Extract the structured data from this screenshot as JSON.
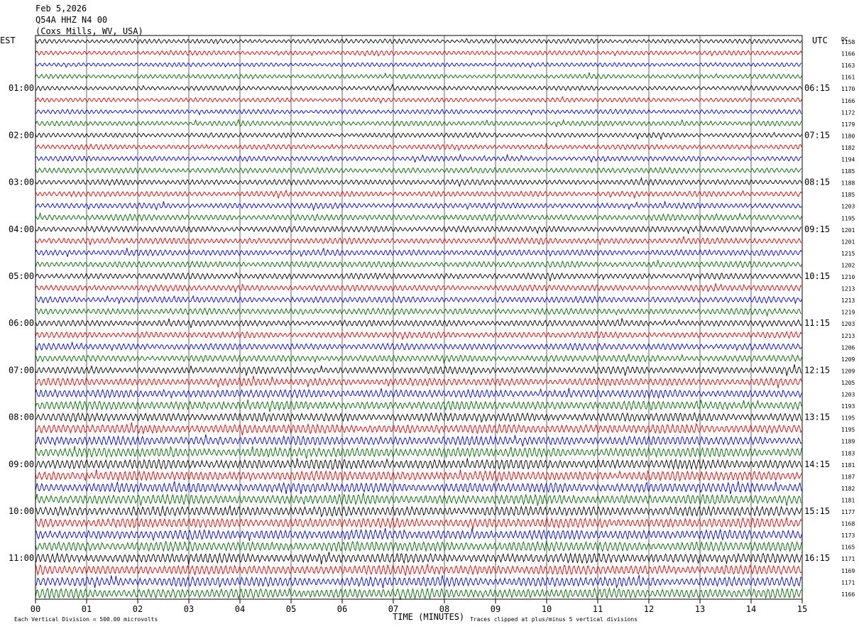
{
  "header": {
    "date": "Feb 5,2026",
    "station": "Q54A HHZ N4 00",
    "location": "(Coxs Mills, WV, USA)"
  },
  "left_axis_title": "EST",
  "right_axis_title": "UTC",
  "right_col_title": "DC",
  "footer": {
    "scale_note": "Each Vertical Division =  500.00 microvolts",
    "clip_note": "Traces clipped at plus/minus 5 vertical divisions"
  },
  "chart_data": {
    "type": "line",
    "title": "",
    "xlabel": "TIME (MINUTES)",
    "xlim": [
      0,
      15
    ],
    "x_ticks": [
      "00",
      "01",
      "02",
      "03",
      "04",
      "05",
      "06",
      "07",
      "08",
      "09",
      "10",
      "11",
      "12",
      "13",
      "14",
      "15"
    ],
    "trace_colors": [
      "#000000",
      "#dd0000",
      "#0000cc",
      "#006600"
    ],
    "grid": "vertical lines every minute",
    "est_labels": [
      "01:00",
      "02:00",
      "03:00",
      "04:00",
      "05:00",
      "06:00",
      "07:00",
      "08:00",
      "09:00",
      "10:00",
      "11:00"
    ],
    "utc_labels": [
      "06:15",
      "07:15",
      "08:15",
      "09:15",
      "10:15",
      "11:15",
      "12:15",
      "13:15",
      "14:15",
      "15:15",
      "16:15"
    ],
    "dc_values": [
      1158,
      1166,
      1163,
      1161,
      1170,
      1166,
      1172,
      1179,
      1180,
      1182,
      1194,
      1185,
      1188,
      1185,
      1203,
      1195,
      1201,
      1201,
      1215,
      1202,
      1210,
      1213,
      1213,
      1219,
      1203,
      1213,
      1206,
      1209,
      1209,
      1205,
      1203,
      1193,
      1195,
      1195,
      1189,
      1183,
      1181,
      1187,
      1182,
      1181,
      1177,
      1168,
      1173,
      1165,
      1171,
      1169,
      1171,
      1166
    ],
    "trace_amplitude_trend": [
      0.45,
      0.45,
      0.42,
      0.45,
      0.45,
      0.45,
      0.45,
      0.5,
      0.48,
      0.5,
      0.5,
      0.55,
      0.55,
      0.55,
      0.55,
      0.6,
      0.6,
      0.6,
      0.6,
      0.62,
      0.6,
      0.6,
      0.62,
      0.62,
      0.62,
      0.62,
      0.65,
      0.65,
      0.7,
      0.75,
      0.8,
      0.85,
      0.85,
      0.9,
      0.9,
      0.95,
      0.95,
      0.95,
      0.95,
      0.95,
      0.95,
      0.95,
      0.95,
      0.95,
      0.95,
      0.95,
      0.95,
      0.95
    ]
  }
}
